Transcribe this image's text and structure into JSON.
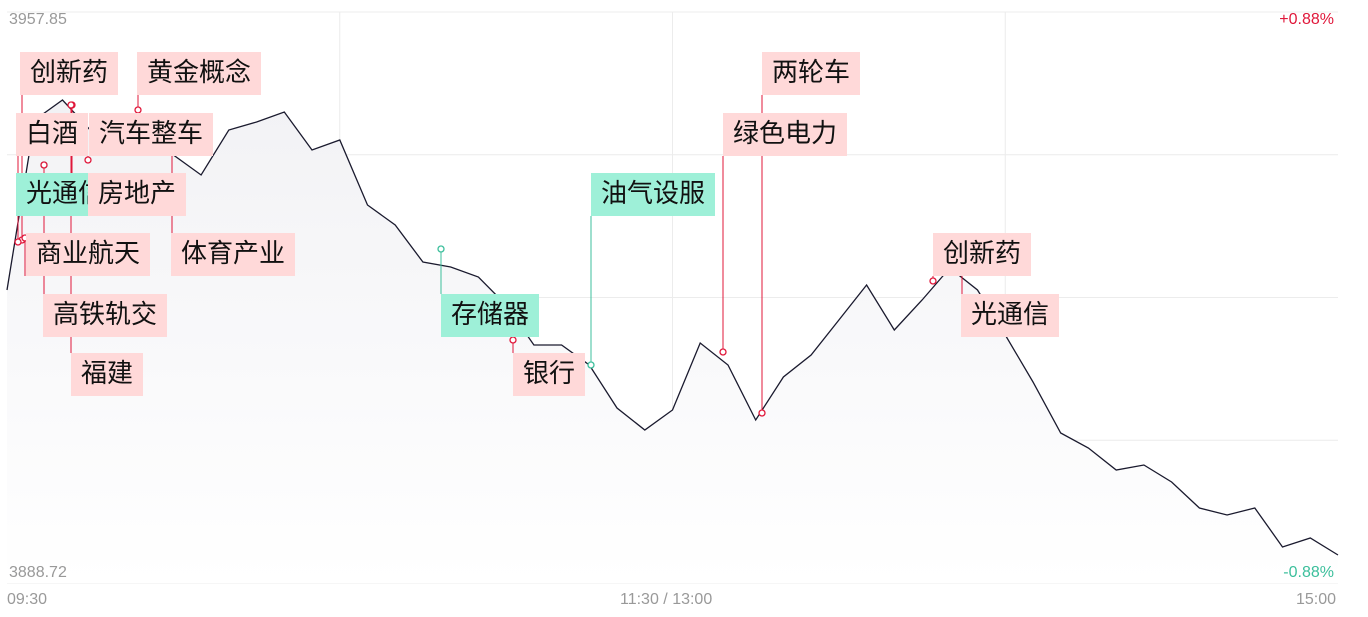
{
  "chart_data": {
    "type": "line",
    "title": "",
    "ylim": [
      3888.72,
      3957.85
    ],
    "y_top_label": "3957.85",
    "y_bottom_label": "3888.72",
    "pct_top_label": "+0.88%",
    "pct_bottom_label": "-0.88%",
    "x_ticks": [
      "09:30",
      "11:30 / 13:00",
      "15:00"
    ],
    "grid": true,
    "colors": {
      "line": "#1a1a2e",
      "up": "#e0173a",
      "down": "#3cbf9c",
      "up_label_bg": "#ffd9d9",
      "down_label_bg": "#9ef0d8",
      "grid": "#ececec",
      "axis_text": "#999999"
    },
    "x": [
      "09:30",
      "09:35",
      "09:40",
      "09:45",
      "09:50",
      "09:55",
      "10:00",
      "10:05",
      "10:10",
      "10:15",
      "10:20",
      "10:25",
      "10:30",
      "10:35",
      "10:40",
      "10:45",
      "10:50",
      "10:55",
      "11:00",
      "11:05",
      "11:10",
      "11:15",
      "11:20",
      "11:25",
      "11:30",
      "13:05",
      "13:10",
      "13:15",
      "13:20",
      "13:25",
      "13:30",
      "13:35",
      "13:40",
      "13:45",
      "13:50",
      "13:55",
      "14:00",
      "14:05",
      "14:10",
      "14:15",
      "14:20",
      "14:25",
      "14:30",
      "14:35",
      "14:40",
      "14:45",
      "14:50",
      "14:55",
      "15:00"
    ],
    "values": [
      3924.19,
      3944.77,
      3947.2,
      3943.56,
      3944.17,
      3941.14,
      3940.54,
      3938.12,
      3943.56,
      3944.53,
      3945.74,
      3941.14,
      3942.35,
      3934.48,
      3932.06,
      3927.58,
      3926.98,
      3925.77,
      3922.38,
      3917.53,
      3917.53,
      3915.11,
      3909.91,
      3907.24,
      3909.66,
      3917.78,
      3915.11,
      3908.45,
      3913.66,
      3916.32,
      3920.56,
      3924.8,
      3919.35,
      3922.98,
      3926.86,
      3924.19,
      3918.74,
      3913.05,
      3906.88,
      3905.06,
      3902.4,
      3903.01,
      3900.95,
      3897.8,
      3896.95,
      3897.8,
      3893.08,
      3894.17,
      3892.11
    ],
    "annotations": [
      {
        "label": "创新药",
        "trend": "up"
      },
      {
        "label": "黄金概念",
        "trend": "up"
      },
      {
        "label": "白酒",
        "trend": "up"
      },
      {
        "label": "汽车整车",
        "trend": "up"
      },
      {
        "label": "光通信",
        "trend": "down"
      },
      {
        "label": "房地产",
        "trend": "up"
      },
      {
        "label": "商业航天",
        "trend": "up"
      },
      {
        "label": "体育产业",
        "trend": "up"
      },
      {
        "label": "高铁轨交",
        "trend": "up"
      },
      {
        "label": "福建",
        "trend": "up"
      },
      {
        "label": "存储器",
        "trend": "down"
      },
      {
        "label": "银行",
        "trend": "up"
      },
      {
        "label": "油气设服",
        "trend": "down"
      },
      {
        "label": "绿色电力",
        "trend": "up"
      },
      {
        "label": "两轮车",
        "trend": "up"
      },
      {
        "label": "创新药",
        "trend": "up"
      },
      {
        "label": "光通信",
        "trend": "up"
      }
    ]
  }
}
